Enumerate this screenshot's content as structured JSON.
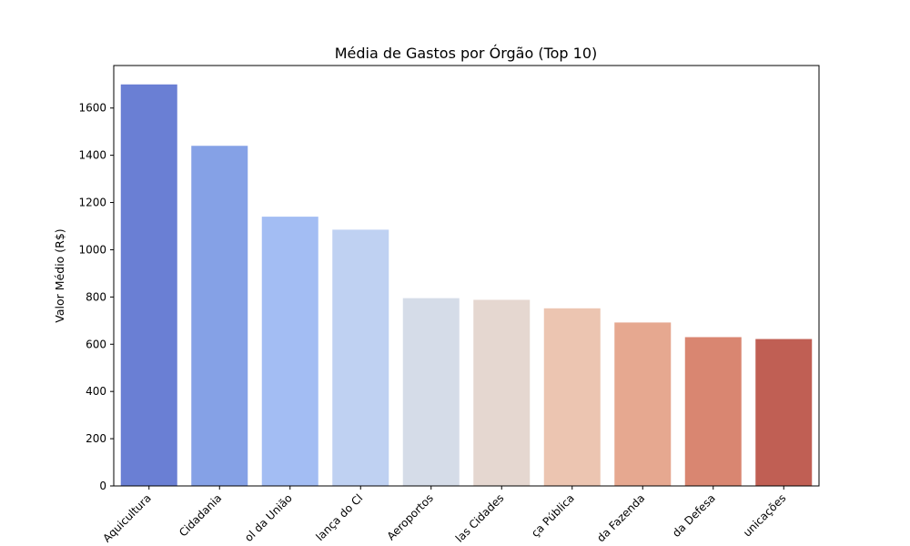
{
  "chart_data": {
    "type": "bar",
    "title": "Média de Gastos por Órgão (Top 10)",
    "xlabel": "",
    "ylabel": "Valor Médio (R$)",
    "ylim": [
      0,
      1780
    ],
    "yticks": [
      0,
      200,
      400,
      600,
      800,
      1000,
      1200,
      1400,
      1600
    ],
    "grid": false,
    "categories": [
      "Aquicultura",
      "Cidadania",
      "ol da União",
      "lança do Cl",
      "Aeroportos",
      "las Cidades",
      "ça Pública",
      "da Fazenda",
      "da Defesa",
      "unicações"
    ],
    "values": [
      1700,
      1440,
      1140,
      1085,
      795,
      788,
      752,
      692,
      630,
      622
    ],
    "colors": [
      "#6a7fd4",
      "#85a1e6",
      "#a3bdf3",
      "#bfd1f2",
      "#d5dce8",
      "#e5d7d0",
      "#ecc5b1",
      "#e6a890",
      "#d98671",
      "#c05f54"
    ]
  }
}
